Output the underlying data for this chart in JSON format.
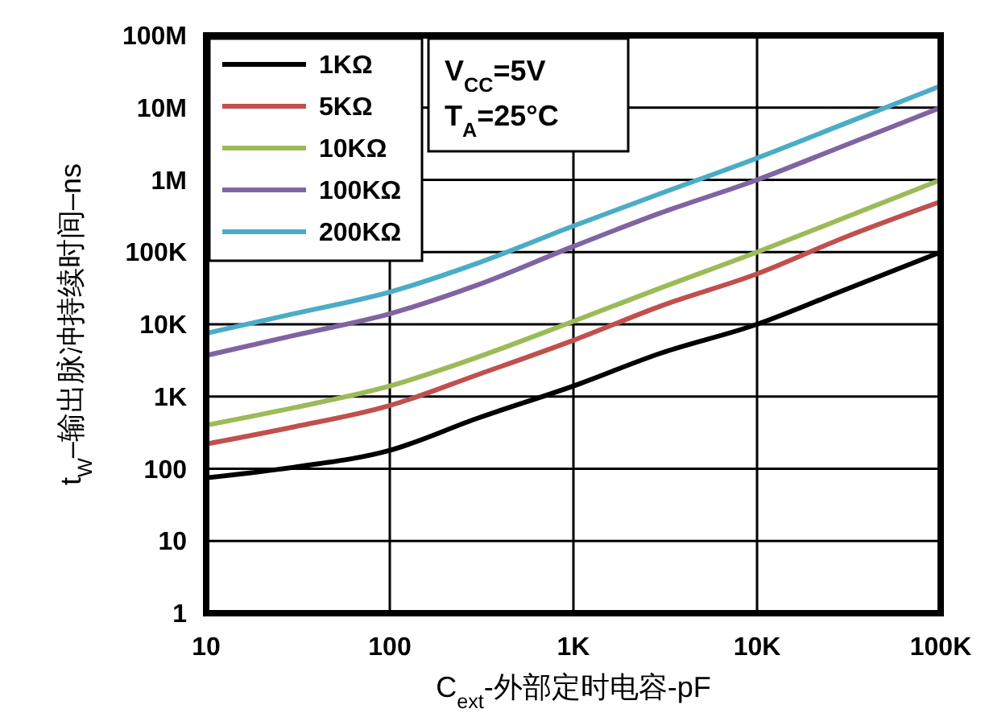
{
  "chart_data": {
    "type": "line",
    "xlabel": "C$_{ext}$-外部定时电容-pF",
    "ylabel": "t$_{W}$–输出脉冲持续时间–ns",
    "log": "xy",
    "grid": true,
    "legend": "top left",
    "line_style": "solid",
    "marker": "none",
    "x": [
      10,
      30,
      100,
      300,
      1000,
      3000,
      10000,
      30000,
      100000
    ],
    "xlim": [
      10,
      100000
    ],
    "xticks": [
      10,
      100,
      {
        "value": 1000,
        "label": "1K"
      },
      {
        "value": 10000,
        "label": "10K"
      },
      {
        "value": 100000,
        "label": "100K"
      }
    ],
    "ylim": [
      1,
      100000000
    ],
    "yticks": [
      1,
      10,
      100,
      {
        "value": 1000,
        "label": "1K"
      },
      {
        "value": 10000,
        "label": "10K"
      },
      {
        "value": 100000,
        "label": "100K"
      },
      {
        "value": 1000000,
        "label": "1M"
      },
      {
        "value": 10000000,
        "label": "10M"
      },
      {
        "value": 100000000,
        "label": "100M"
      }
    ],
    "series": [
      {
        "name": "1KΩ",
        "color": "#000000",
        "values": [
          75,
          105,
          180,
          500,
          1400,
          4000,
          10000,
          30000,
          100000
        ]
      },
      {
        "name": "5KΩ",
        "color": "#c0504d",
        "values": [
          220,
          380,
          750,
          2000,
          6000,
          18000,
          50000,
          160000,
          500000
        ]
      },
      {
        "name": "10KΩ",
        "color": "#9bbb59",
        "values": [
          400,
          700,
          1400,
          3500,
          11000,
          32000,
          100000,
          300000,
          1000000
        ]
      },
      {
        "name": "100KΩ",
        "color": "#8064a2",
        "values": [
          3700,
          7000,
          14000,
          35000,
          120000,
          350000,
          1000000,
          3000000,
          10000000
        ]
      },
      {
        "name": "200KΩ",
        "color": "#4bacc6",
        "values": [
          7500,
          14000,
          28000,
          70000,
          230000,
          650000,
          2000000,
          6000000,
          20000000
        ]
      }
    ],
    "annotations": [
      "V$_{CC}$=5V",
      "T$_{A}$=25°C"
    ]
  }
}
